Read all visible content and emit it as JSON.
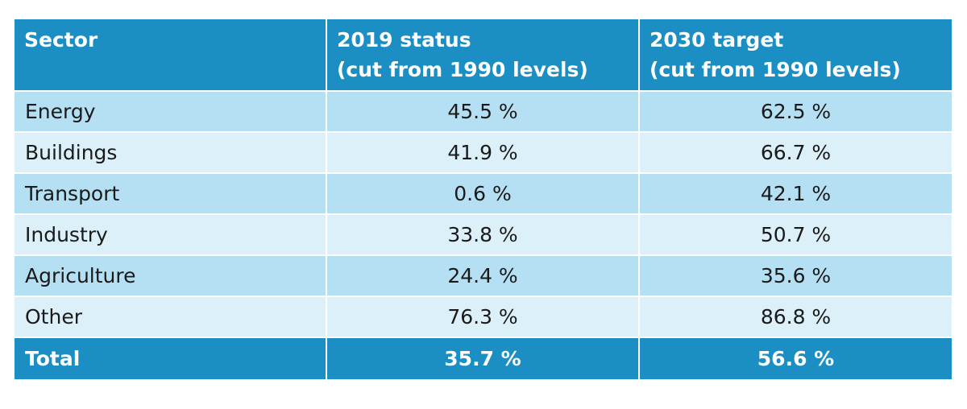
{
  "table": {
    "headers": {
      "sector": "Sector",
      "status_line1": "2019 status",
      "status_line2": "(cut from 1990 levels)",
      "target_line1": "2030 target",
      "target_line2": "(cut from 1990 levels)"
    },
    "rows": [
      {
        "sector": "Energy",
        "status_2019": "45.5 %",
        "target_2030": "62.5 %"
      },
      {
        "sector": "Buildings",
        "status_2019": "41.9 %",
        "target_2030": "66.7 %"
      },
      {
        "sector": "Transport",
        "status_2019": "0.6 %",
        "target_2030": "42.1 %"
      },
      {
        "sector": "Industry",
        "status_2019": "33.8 %",
        "target_2030": "50.7 %"
      },
      {
        "sector": "Agriculture",
        "status_2019": "24.4 %",
        "target_2030": "35.6 %"
      },
      {
        "sector": "Other",
        "status_2019": "76.3 %",
        "target_2030": "86.8 %"
      }
    ],
    "total": {
      "sector": "Total",
      "status_2019": "35.7 %",
      "target_2030": "56.6 %"
    }
  },
  "colors": {
    "header_bg": "#1b8ec4",
    "row_odd_bg": "#b5e0f3",
    "row_even_bg": "#dcf0f9",
    "header_text": "#ffffff"
  }
}
